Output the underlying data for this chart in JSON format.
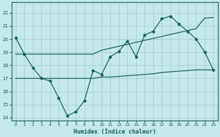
{
  "xlabel": "Humidex (Indice chaleur)",
  "bg_color": "#c5e8e8",
  "grid_color": "#a8d0d0",
  "line_color": "#1a6060",
  "xlim": [
    -0.5,
    23.5
  ],
  "ylim": [
    13.8,
    22.8
  ],
  "xticks": [
    0,
    1,
    2,
    3,
    4,
    5,
    6,
    7,
    8,
    9,
    10,
    11,
    12,
    13,
    14,
    15,
    16,
    17,
    18,
    19,
    20,
    21,
    22,
    23
  ],
  "yticks": [
    14,
    15,
    16,
    17,
    18,
    19,
    20,
    21,
    22
  ],
  "curve_x": [
    0,
    1,
    2,
    3,
    4,
    5,
    6,
    7,
    8,
    9,
    10,
    11,
    12,
    13,
    14,
    15,
    16,
    17,
    18,
    19,
    20,
    21,
    22,
    23
  ],
  "curve_y": [
    20.1,
    18.85,
    17.8,
    17.0,
    16.8,
    15.5,
    14.15,
    14.45,
    15.3,
    17.6,
    17.3,
    18.65,
    19.05,
    19.85,
    18.65,
    20.3,
    20.6,
    21.55,
    21.75,
    21.15,
    20.6,
    20.0,
    19.0,
    17.65
  ],
  "regr1_x": [
    0,
    1,
    2,
    3,
    4,
    5,
    6,
    7,
    8,
    9,
    10,
    11,
    12,
    13,
    14,
    15,
    16,
    17,
    18,
    19,
    20,
    21,
    22,
    23
  ],
  "regr1_y": [
    18.85,
    18.85,
    18.85,
    18.85,
    18.85,
    18.85,
    18.85,
    18.85,
    18.85,
    18.85,
    19.15,
    19.3,
    19.45,
    19.6,
    19.75,
    19.9,
    20.05,
    20.2,
    20.35,
    20.5,
    20.65,
    20.8,
    21.6,
    21.65
  ],
  "regr2_x": [
    0,
    1,
    2,
    3,
    4,
    5,
    6,
    7,
    8,
    9,
    10,
    11,
    12,
    13,
    14,
    15,
    16,
    17,
    18,
    19,
    20,
    21,
    22,
    23
  ],
  "regr2_y": [
    17.0,
    17.0,
    17.0,
    17.0,
    17.0,
    17.0,
    17.0,
    17.0,
    17.0,
    17.0,
    17.1,
    17.1,
    17.15,
    17.2,
    17.25,
    17.3,
    17.35,
    17.45,
    17.5,
    17.55,
    17.6,
    17.65,
    17.65,
    17.65
  ]
}
